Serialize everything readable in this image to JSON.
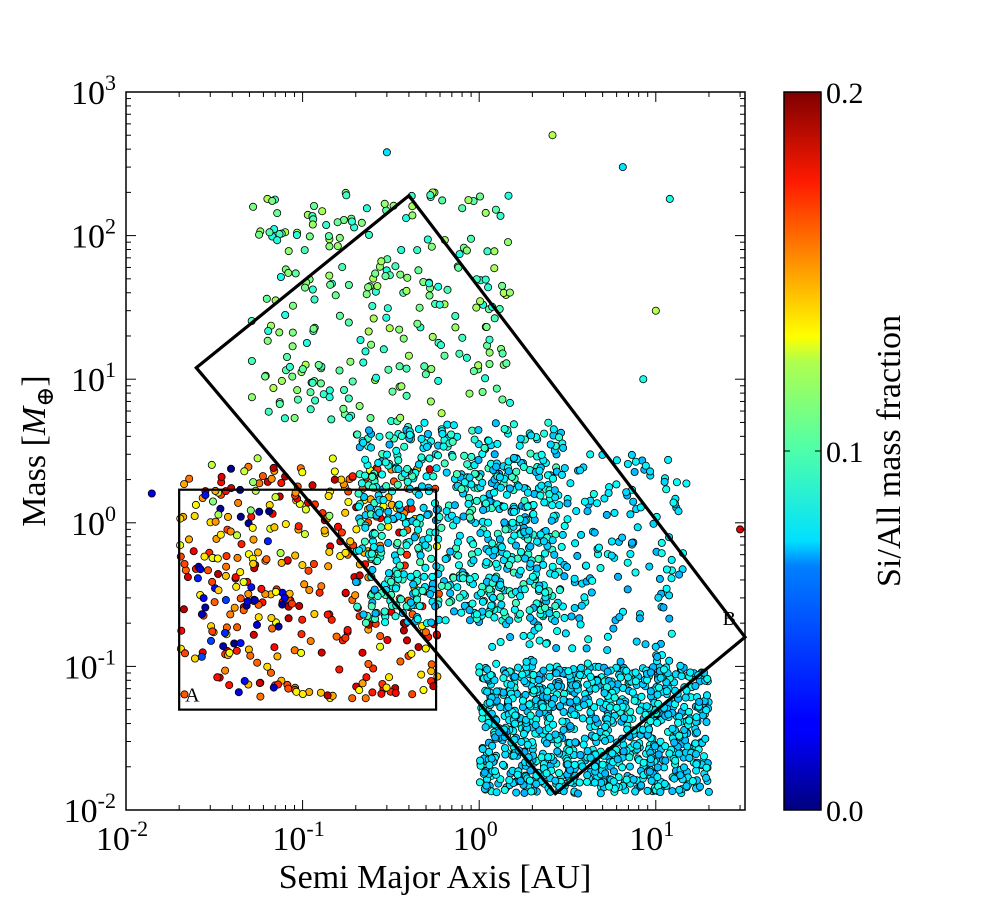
{
  "chart_data": {
    "type": "scatter",
    "xlabel": "Semi Major Axis [AU]",
    "ylabel_main": "Mass [",
    "ylabel_symbol": "M",
    "ylabel_sub": "⊕",
    "ylabel_close": "]",
    "x_scale": "log",
    "y_scale": "log",
    "xlim": [
      0.01,
      32
    ],
    "ylim": [
      0.01,
      1000
    ],
    "x_ticks": [
      {
        "value": 0.01,
        "base": "10",
        "exp": "-2"
      },
      {
        "value": 0.1,
        "base": "10",
        "exp": "-1"
      },
      {
        "value": 1,
        "base": "10",
        "exp": "0"
      },
      {
        "value": 10,
        "base": "10",
        "exp": "1"
      }
    ],
    "y_ticks": [
      {
        "value": 0.01,
        "base": "10",
        "exp": "-2"
      },
      {
        "value": 0.1,
        "base": "10",
        "exp": "-1"
      },
      {
        "value": 1,
        "base": "10",
        "exp": "0"
      },
      {
        "value": 10,
        "base": "10",
        "exp": "1"
      },
      {
        "value": 100,
        "base": "10",
        "exp": "2"
      },
      {
        "value": 1000,
        "base": "10",
        "exp": "3"
      }
    ],
    "grid": false,
    "colorbar": {
      "label": "Si/All mass fraction",
      "range": [
        0.0,
        0.2
      ],
      "tick_values": [
        0.0,
        0.1,
        0.2
      ],
      "tick_labels": [
        "0.0",
        "0.1",
        "0.2"
      ],
      "colormap": "jet"
    },
    "regions": [
      {
        "label": "A",
        "shape": "rectangle",
        "a_range": [
          0.02,
          0.57
        ],
        "mass_range": [
          0.05,
          1.7
        ]
      },
      {
        "label": "B",
        "shape": "rotated-rectangle",
        "corners": [
          [
            0.025,
            12
          ],
          [
            0.4,
            190
          ],
          [
            32,
            0.16
          ],
          [
            2.7,
            0.013
          ]
        ]
      }
    ],
    "populations": [
      {
        "a_range": [
          0.02,
          0.6
        ],
        "mass_range": [
          0.06,
          2.5
        ],
        "si_fraction_range": [
          0.12,
          0.19
        ],
        "approx_count": 320
      },
      {
        "a_range": [
          0.025,
          0.08
        ],
        "mass_range": [
          0.06,
          2.5
        ],
        "si_fraction_range": [
          0.0,
          0.04
        ],
        "approx_count": 35
      },
      {
        "a_range": [
          0.03,
          0.15
        ],
        "mass_range": [
          0.3,
          3
        ],
        "si_fraction_range": [
          0.1,
          0.15
        ],
        "approx_count": 40
      },
      {
        "a_range": [
          0.05,
          1.5
        ],
        "mass_range": [
          5,
          200
        ],
        "si_fraction_range": [
          0.08,
          0.11
        ],
        "approx_count": 260
      },
      {
        "a_range": [
          0.2,
          3
        ],
        "mass_range": [
          0.2,
          5
        ],
        "si_fraction_range": [
          0.06,
          0.09
        ],
        "approx_count": 650
      },
      {
        "a_range": [
          1,
          20
        ],
        "mass_range": [
          0.013,
          0.1
        ],
        "si_fraction_range": [
          0.06,
          0.08
        ],
        "approx_count": 900
      },
      {
        "a_range": [
          1,
          15
        ],
        "mass_range": [
          0.05,
          3
        ],
        "si_fraction_range": [
          0.06,
          0.08
        ],
        "approx_count": 300
      }
    ],
    "notable_points": [
      {
        "x": 0.014,
        "y": 1.6,
        "si": 0.02
      },
      {
        "x": 30,
        "y": 0.9,
        "si": 0.18
      },
      {
        "x": 0.3,
        "y": 380,
        "si": 0.07
      },
      {
        "x": 2.6,
        "y": 500,
        "si": 0.11
      },
      {
        "x": 6.5,
        "y": 300,
        "si": 0.07
      },
      {
        "x": 10,
        "y": 30,
        "si": 0.11
      },
      {
        "x": 12,
        "y": 180,
        "si": 0.08
      },
      {
        "x": 8.5,
        "y": 10,
        "si": 0.08
      }
    ]
  }
}
